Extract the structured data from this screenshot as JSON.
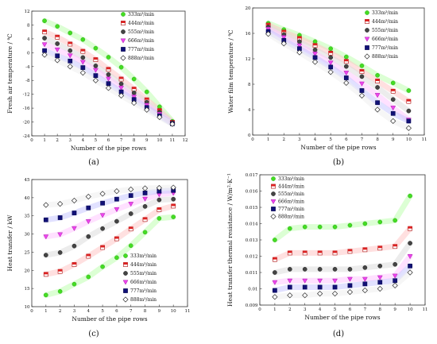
{
  "legend_labels": [
    "333m³/min",
    "444m³/min",
    "555m³/min",
    "666m³/min",
    "777m³/min",
    "888m³/min"
  ],
  "series_styles": [
    {
      "marker": "circle",
      "fill": "#44dd22",
      "stroke": "#33aa22",
      "glow": "#bfffb0"
    },
    {
      "marker": "half-square",
      "fill": "#dd2222",
      "stroke": "#aa1111",
      "glow": "#ffc6c6"
    },
    {
      "marker": "circle",
      "fill": "#444444",
      "stroke": "#222222",
      "glow": "#dddddd"
    },
    {
      "marker": "triangle-down",
      "fill": "#ee44ee",
      "stroke": "#aa22aa",
      "glow": "#ffc8ff"
    },
    {
      "marker": "square",
      "fill": "#111177",
      "stroke": "#000044",
      "glow": "#c8c8ff"
    },
    {
      "marker": "diamond-open",
      "fill": "#ffffff",
      "stroke": "#333333",
      "glow": "#eeeeee"
    }
  ],
  "chart_data": [
    {
      "panel": "(a)",
      "type": "scatter",
      "xlabel": "Number of the pipe rows",
      "ylabel": "Fresh air temperature / ℃",
      "xlim": [
        0,
        12
      ],
      "ylim": [
        -24,
        12
      ],
      "xticks": [
        0,
        1,
        2,
        3,
        4,
        5,
        6,
        7,
        8,
        9,
        10,
        11,
        12
      ],
      "yticks": [
        12,
        8,
        4,
        0,
        -4,
        -8,
        -12,
        -16,
        -20,
        -24
      ],
      "legend_position": "top-right",
      "x": [
        1,
        2,
        3,
        4,
        5,
        6,
        7,
        8,
        9,
        10,
        11
      ],
      "series": [
        {
          "name": "333m³/min",
          "values": [
            9.2,
            7.6,
            5.7,
            3.8,
            1.3,
            -1.3,
            -4.2,
            -7.6,
            -11.3,
            -15.6,
            -19.8
          ]
        },
        {
          "name": "444m³/min",
          "values": [
            6.0,
            4.5,
            2.5,
            0.4,
            -2.0,
            -4.8,
            -7.6,
            -10.5,
            -13.6,
            -16.7,
            -20.1
          ]
        },
        {
          "name": "555m³/min",
          "values": [
            4.2,
            2.6,
            0.6,
            -1.4,
            -3.8,
            -6.3,
            -9.0,
            -11.6,
            -14.3,
            -17.2,
            -20.2
          ]
        },
        {
          "name": "666m³/min",
          "values": [
            2.4,
            0.9,
            -0.8,
            -2.7,
            -5.0,
            -7.5,
            -10.1,
            -12.7,
            -15.1,
            -17.7,
            -20.4
          ]
        },
        {
          "name": "777m³/min",
          "values": [
            0.6,
            -0.9,
            -2.4,
            -4.3,
            -6.6,
            -8.9,
            -11.3,
            -13.5,
            -15.8,
            -18.2,
            -20.5
          ]
        },
        {
          "name": "888m³/min",
          "values": [
            -0.6,
            -2.2,
            -4.0,
            -5.8,
            -8.0,
            -10.2,
            -12.4,
            -14.5,
            -16.5,
            -18.6,
            -20.6
          ]
        }
      ]
    },
    {
      "panel": "(b)",
      "type": "scatter",
      "xlabel": "Number of the pipe rows",
      "ylabel": "Water film temperature / ℃",
      "xlim": [
        0,
        11
      ],
      "ylim": [
        0,
        20
      ],
      "xticks": [
        0,
        1,
        2,
        3,
        4,
        5,
        6,
        7,
        8,
        9,
        10,
        11
      ],
      "yticks": [
        20,
        16,
        12,
        8,
        4,
        0
      ],
      "legend_position": "top-right",
      "x": [
        1,
        2,
        3,
        4,
        5,
        6,
        7,
        8,
        9,
        10
      ],
      "series": [
        {
          "name": "333m³/min",
          "values": [
            17.6,
            16.6,
            15.7,
            14.7,
            13.6,
            12.3,
            10.9,
            9.4,
            8.2,
            7.0
          ]
        },
        {
          "name": "444m³/min",
          "values": [
            17.3,
            16.2,
            15.2,
            14.1,
            12.9,
            11.6,
            10.0,
            8.5,
            6.9,
            5.3
          ]
        },
        {
          "name": "555m³/min",
          "values": [
            17.0,
            15.8,
            14.7,
            13.4,
            12.2,
            10.8,
            9.2,
            7.5,
            5.6,
            3.8
          ]
        },
        {
          "name": "666m³/min",
          "values": [
            16.7,
            15.4,
            14.1,
            12.8,
            11.4,
            9.8,
            8.1,
            6.3,
            4.3,
            2.4
          ]
        },
        {
          "name": "777m³/min",
          "values": [
            16.3,
            14.9,
            13.6,
            12.2,
            10.7,
            9.0,
            7.0,
            5.1,
            3.4,
            2.2
          ]
        },
        {
          "name": "888m³/min",
          "values": [
            15.9,
            14.4,
            13.0,
            11.5,
            9.9,
            8.2,
            6.2,
            4.0,
            2.2,
            1.1
          ]
        }
      ]
    },
    {
      "panel": "(c)",
      "type": "scatter",
      "xlabel": "Number of the pipe rows",
      "ylabel": "Heat transfer / kW",
      "xlim": [
        0,
        11
      ],
      "ylim": [
        10,
        45
      ],
      "xticks": [
        0,
        1,
        2,
        3,
        4,
        5,
        6,
        7,
        8,
        9,
        10,
        11
      ],
      "yticks": [
        45,
        40,
        35,
        30,
        25,
        20,
        15,
        10
      ],
      "legend_position": "bottom-right",
      "x": [
        1,
        2,
        3,
        4,
        5,
        6,
        7,
        8,
        9,
        10
      ],
      "series": [
        {
          "name": "333m³/min",
          "values": [
            13.2,
            14.2,
            16.2,
            18.2,
            21.0,
            23.5,
            26.8,
            30.5,
            34.3,
            34.7
          ]
        },
        {
          "name": "444m³/min",
          "values": [
            18.9,
            19.7,
            21.6,
            23.9,
            26.3,
            28.7,
            31.4,
            34.0,
            36.7,
            37.7
          ]
        },
        {
          "name": "555m³/min",
          "values": [
            24.2,
            24.9,
            26.7,
            29.3,
            31.5,
            33.5,
            35.6,
            37.6,
            39.4,
            39.6
          ]
        },
        {
          "name": "666m³/min",
          "values": [
            29.3,
            29.9,
            31.6,
            33.5,
            35.2,
            36.8,
            38.3,
            39.7,
            40.9,
            41.3
          ]
        },
        {
          "name": "777m³/min",
          "values": [
            33.9,
            34.5,
            35.8,
            37.2,
            38.5,
            39.6,
            40.6,
            41.3,
            41.8,
            42.0
          ]
        },
        {
          "name": "888m³/min",
          "values": [
            38.0,
            38.3,
            39.2,
            40.3,
            41.1,
            41.8,
            42.3,
            42.6,
            42.7,
            42.8
          ]
        }
      ]
    },
    {
      "panel": "(d)",
      "type": "scatter",
      "xlabel": "Number of the pipe rows",
      "ylabel": "Heat transfer thermal resistance / W/m²·K⁻¹",
      "xlim": [
        0,
        11
      ],
      "ylim": [
        0.009,
        0.017
      ],
      "xticks": [
        0,
        1,
        2,
        3,
        4,
        5,
        6,
        7,
        8,
        9,
        10,
        11
      ],
      "yticks": [
        0.017,
        0.016,
        0.015,
        0.014,
        0.013,
        0.012,
        0.011,
        0.01,
        0.009
      ],
      "legend_position": "top-left",
      "x": [
        1,
        2,
        3,
        4,
        5,
        6,
        7,
        8,
        9,
        10
      ],
      "series": [
        {
          "name": "333m³/min",
          "values": [
            0.013,
            0.0137,
            0.0138,
            0.0138,
            0.0138,
            0.0139,
            0.014,
            0.0141,
            0.0142,
            0.0157
          ]
        },
        {
          "name": "444m³/min",
          "values": [
            0.0118,
            0.0122,
            0.0122,
            0.0122,
            0.0122,
            0.0123,
            0.0124,
            0.0125,
            0.0126,
            0.0137
          ]
        },
        {
          "name": "555m³/min",
          "values": [
            0.011,
            0.0112,
            0.0112,
            0.0112,
            0.0112,
            0.0112,
            0.0113,
            0.0114,
            0.0115,
            0.0128
          ]
        },
        {
          "name": "666m³/min",
          "values": [
            0.0104,
            0.0105,
            0.0105,
            0.0105,
            0.0105,
            0.0106,
            0.0106,
            0.0107,
            0.0108,
            0.012
          ]
        },
        {
          "name": "777m³/min",
          "values": [
            0.0099,
            0.0101,
            0.0101,
            0.0101,
            0.0101,
            0.0102,
            0.0103,
            0.0104,
            0.0105,
            0.0114
          ]
        },
        {
          "name": "888m³/min",
          "values": [
            0.0095,
            0.0096,
            0.0096,
            0.0097,
            0.0097,
            0.0098,
            0.0099,
            0.01,
            0.0102,
            0.011
          ]
        }
      ]
    }
  ]
}
